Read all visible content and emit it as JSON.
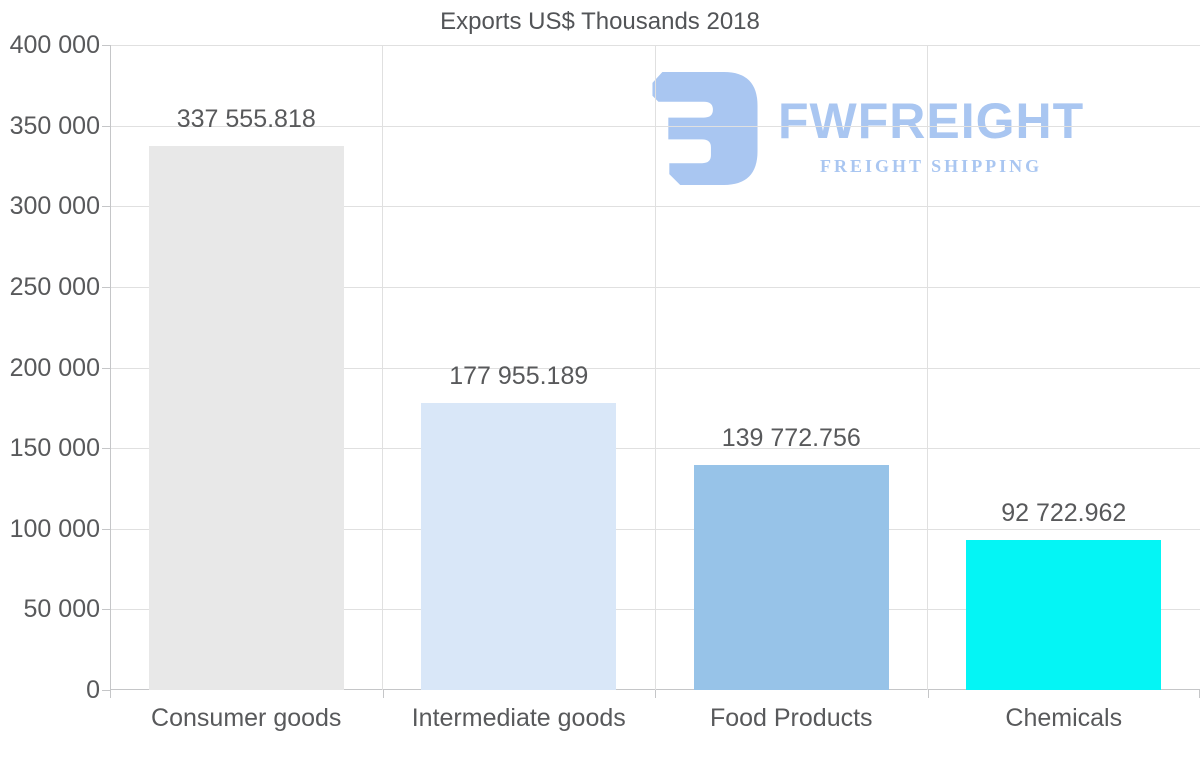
{
  "chart_data": {
    "type": "bar",
    "title": "Exports US$ Thousands 2018",
    "xlabel": "",
    "ylabel": "",
    "categories": [
      "Consumer goods",
      "Intermediate goods",
      "Food Products",
      "Chemicals"
    ],
    "values": [
      337555.818,
      177955.189,
      139772.756,
      92722.962
    ],
    "value_labels": [
      "337 555.818",
      "177 955.189",
      "139 772.756",
      "92 722.962"
    ],
    "bar_colors": [
      "#e8e8e8",
      "#d9e7f8",
      "#97c3e8",
      "#04f5f5"
    ],
    "ylim": [
      0,
      400000
    ],
    "ytick_step": 50000,
    "ytick_labels": [
      "0",
      "50 000",
      "100 000",
      "150 000",
      "200 000",
      "250 000",
      "300 000",
      "350 000",
      "400 000"
    ],
    "grid": true,
    "legend": false
  },
  "watermark": {
    "brand": "FWFREIGHT",
    "tagline": "FREIGHT SHIPPING",
    "color": "#a9c6f1"
  },
  "colors": {
    "background": "#ffffff",
    "text": "#58595b",
    "title_text": "#525457",
    "grid": "#e0e0e0",
    "axis": "#c5c6c8"
  }
}
